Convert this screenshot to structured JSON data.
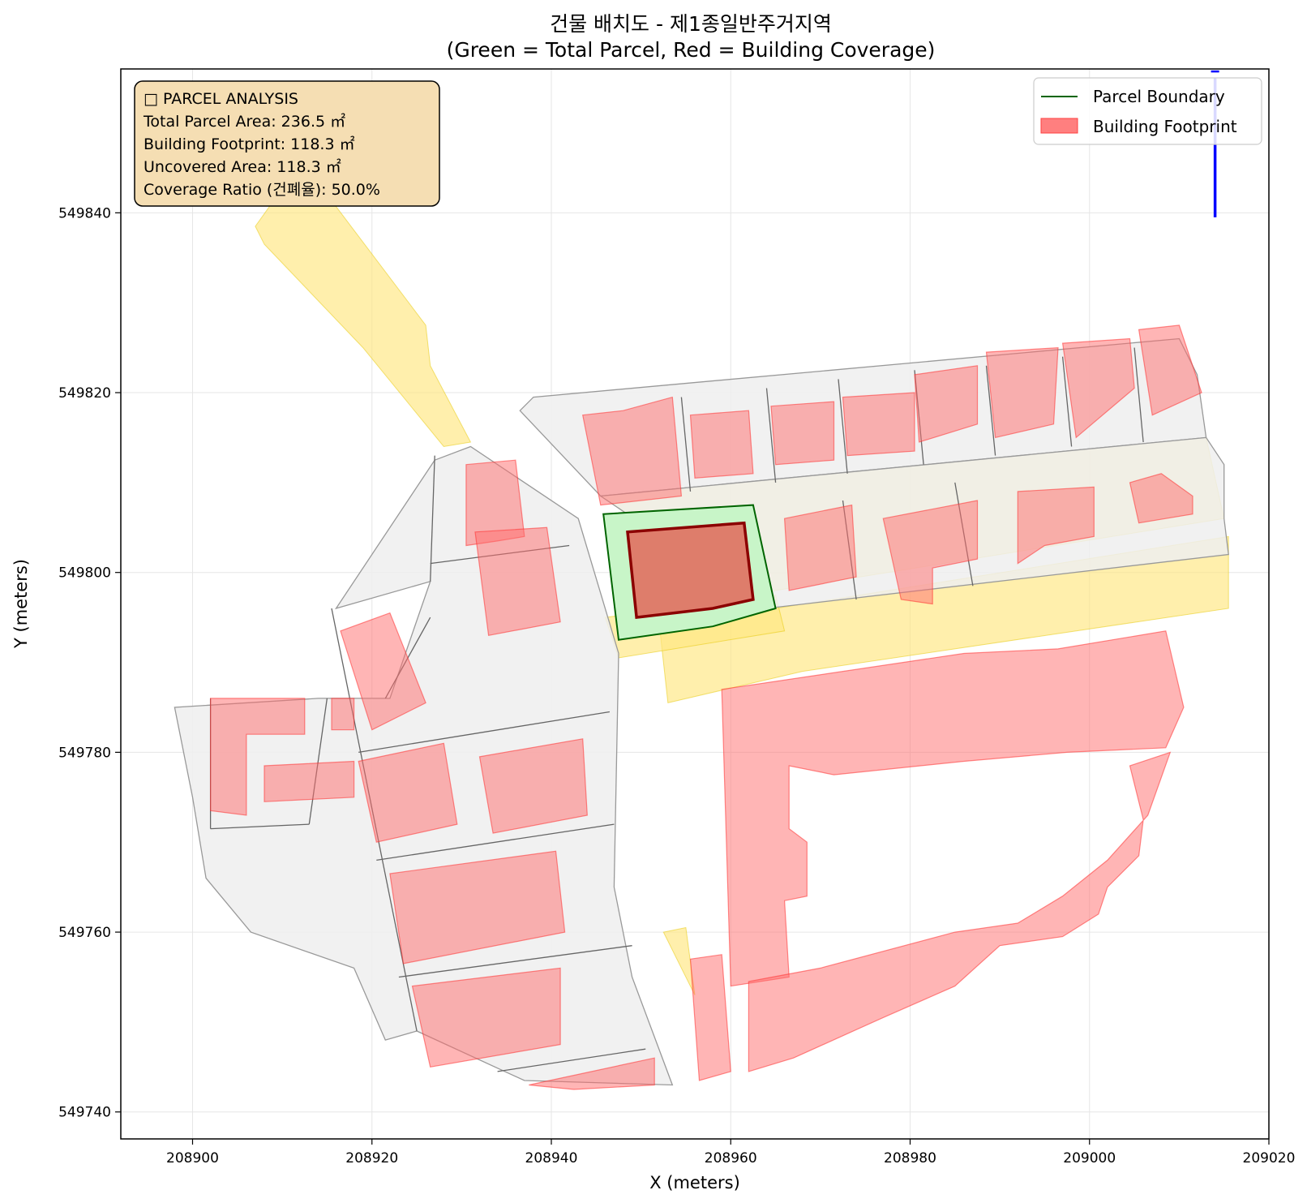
{
  "title": {
    "line1": "건물 배치도 - 제1종일반주거지역",
    "line2": "(Green = Total Parcel, Red = Building Coverage)"
  },
  "axes": {
    "xlabel": "X (meters)",
    "ylabel": "Y (meters)",
    "xlim": [
      208892,
      209020
    ],
    "ylim": [
      549737,
      549856
    ],
    "xticks": [
      208900,
      208920,
      208940,
      208960,
      208980,
      209000,
      209020
    ],
    "yticks": [
      549740,
      549760,
      549780,
      549800,
      549820,
      549840
    ],
    "grid": true
  },
  "legend": {
    "placement": "top-right",
    "items": [
      {
        "label": "Parcel Boundary",
        "kind": "line",
        "color": "#006400"
      },
      {
        "label": "Building Footprint",
        "kind": "patch",
        "color": "#ff7f7f"
      }
    ]
  },
  "info_box": {
    "placement": "top-left",
    "lines": [
      "□ PARCEL ANALYSIS",
      "Total Parcel Area: 236.5 ㎡",
      "Building Footprint: 118.3 ㎡",
      "Uncovered Area: 118.3 ㎡",
      "Coverage Ratio (건폐율): 50.0%"
    ]
  },
  "north_arrow": {
    "x": 209014,
    "y_start": 549839.5,
    "y_end": 549855,
    "color": "#0000ff"
  },
  "colors": {
    "parcel_fill": "#c8f5c8",
    "parcel_edge": "#006400",
    "target_building_fill": "#e07060",
    "target_building_edge": "#8b0000",
    "building_fill": "#ff6b6b",
    "road_fill": "#ffe680",
    "context_fill": "#eeeeee",
    "context_edge": "#666666",
    "info_box_bg": "#f5deb3"
  },
  "map_data": {
    "crs_units": "meters",
    "target_parcel": [
      [
        208945.8,
        549806.5
      ],
      [
        208962.5,
        549807.5
      ],
      [
        208965.0,
        549796.0
      ],
      [
        208958.0,
        549794.0
      ],
      [
        208947.5,
        549792.5
      ]
    ],
    "target_building": [
      [
        208948.5,
        549804.5
      ],
      [
        208961.5,
        549805.5
      ],
      [
        208962.5,
        549797.0
      ],
      [
        208958.0,
        549796.0
      ],
      [
        208949.5,
        549795.0
      ]
    ],
    "context_parcels": [
      [
        [
          208936.5,
          549818.0
        ],
        [
          208938.0,
          549819.5
        ],
        [
          209010.0,
          549826.0
        ],
        [
          209012.0,
          549822.0
        ],
        [
          209013.0,
          549815.0
        ],
        [
          208945.5,
          549808.5
        ]
      ],
      [
        [
          208945.5,
          549808.5
        ],
        [
          209013.0,
          549815.0
        ],
        [
          209015.0,
          549812.0
        ],
        [
          209015.0,
          549806.0
        ],
        [
          209015.5,
          549802.0
        ],
        [
          208964.0,
          549796.0
        ]
      ],
      [
        [
          208927.0,
          549812.5
        ],
        [
          208931.0,
          549814.0
        ],
        [
          208943.0,
          549806.0
        ],
        [
          208947.5,
          549791.0
        ],
        [
          208947.0,
          549765.0
        ],
        [
          208949.0,
          549755.0
        ],
        [
          208953.5,
          549743.0
        ],
        [
          208937.0,
          549743.5
        ],
        [
          208925.0,
          549749.0
        ],
        [
          208921.5,
          549748.0
        ],
        [
          208918.0,
          549756.0
        ],
        [
          208906.5,
          549760.0
        ],
        [
          208901.5,
          549766.0
        ],
        [
          208900.0,
          549775.0
        ],
        [
          208898.0,
          549785.0
        ],
        [
          208914.0,
          549786.0
        ],
        [
          208922.0,
          549786.0
        ],
        [
          208926.5,
          549799.0
        ],
        [
          208916.0,
          549796.0
        ]
      ]
    ],
    "context_lines": [
      [
        [
          208954.5,
          549819.5
        ],
        [
          208955.5,
          549809.0
        ]
      ],
      [
        [
          208964.0,
          549820.5
        ],
        [
          208965.0,
          549810.0
        ]
      ],
      [
        [
          208972.0,
          549821.5
        ],
        [
          208973.0,
          549811.0
        ]
      ],
      [
        [
          208980.5,
          549822.5
        ],
        [
          208981.5,
          549812.0
        ]
      ],
      [
        [
          208988.5,
          549823.0
        ],
        [
          208989.5,
          549813.0
        ]
      ],
      [
        [
          208997.0,
          549824.0
        ],
        [
          208998.0,
          549814.0
        ]
      ],
      [
        [
          209005.0,
          549825.0
        ],
        [
          209006.0,
          549814.5
        ]
      ],
      [
        [
          208972.5,
          549808.0
        ],
        [
          208974.0,
          549797.0
        ]
      ],
      [
        [
          208985.0,
          549810.0
        ],
        [
          208987.0,
          549798.5
        ]
      ],
      [
        [
          208927.0,
          549813.0
        ],
        [
          208926.5,
          549799.0
        ]
      ],
      [
        [
          208926.5,
          549801.0
        ],
        [
          208942.0,
          549803.0
        ]
      ],
      [
        [
          208918.5,
          549780.0
        ],
        [
          208946.5,
          549784.5
        ]
      ],
      [
        [
          208920.5,
          549768.0
        ],
        [
          208947.0,
          549772.0
        ]
      ],
      [
        [
          208923.0,
          549755.0
        ],
        [
          208949.0,
          549758.5
        ]
      ],
      [
        [
          208934.0,
          549744.5
        ],
        [
          208950.5,
          549747.0
        ]
      ],
      [
        [
          208902.0,
          549786.0
        ],
        [
          208902.0,
          549771.5
        ]
      ],
      [
        [
          208902.0,
          549771.5
        ],
        [
          208913.0,
          549772.0
        ]
      ],
      [
        [
          208913.0,
          549772.0
        ],
        [
          208915.0,
          549786.0
        ]
      ],
      [
        [
          208921.5,
          549786.0
        ],
        [
          208926.5,
          549795.0
        ]
      ],
      [
        [
          208915.5,
          549796.0
        ],
        [
          208925.0,
          549749.0
        ]
      ]
    ],
    "roads": [
      [
        [
          208907.0,
          549838.5
        ],
        [
          208912.0,
          549845.5
        ],
        [
          208913.5,
          549844.0
        ],
        [
          208926.0,
          549827.5
        ],
        [
          208926.5,
          549823.0
        ],
        [
          208931.0,
          549814.5
        ],
        [
          208928.0,
          549814.0
        ],
        [
          208919.0,
          549825.0
        ],
        [
          208908.0,
          549836.5
        ]
      ],
      [
        [
          208945.5,
          549808.5
        ],
        [
          209013.0,
          549815.0
        ],
        [
          209015.0,
          549806.0
        ],
        [
          208965.0,
          549798.0
        ],
        [
          208962.5,
          549797.0
        ]
      ],
      [
        [
          208952.0,
          549794.5
        ],
        [
          208965.0,
          549796.0
        ],
        [
          209015.5,
          549804.0
        ],
        [
          209015.5,
          549796.0
        ],
        [
          208968.0,
          549789.0
        ],
        [
          208953.0,
          549785.5
        ]
      ],
      [
        [
          208946.0,
          549795.0
        ],
        [
          208965.0,
          549797.5
        ],
        [
          208966.0,
          549793.5
        ],
        [
          208947.5,
          549790.5
        ]
      ],
      [
        [
          208952.5,
          549760.0
        ],
        [
          208955.0,
          549760.5
        ],
        [
          208956.0,
          549753.0
        ]
      ]
    ],
    "buildings": [
      [
        [
          208943.5,
          549817.5
        ],
        [
          208948.0,
          549818.0
        ],
        [
          208953.5,
          549819.5
        ],
        [
          208954.5,
          549808.5
        ],
        [
          208945.5,
          549807.5
        ]
      ],
      [
        [
          208955.5,
          549817.5
        ],
        [
          208962.0,
          549818.0
        ],
        [
          208962.5,
          549811.0
        ],
        [
          208956.0,
          549810.5
        ]
      ],
      [
        [
          208964.5,
          549818.5
        ],
        [
          208971.5,
          549819.0
        ],
        [
          208971.5,
          549812.5
        ],
        [
          208965.0,
          549812.0
        ]
      ],
      [
        [
          208972.5,
          549819.5
        ],
        [
          208980.5,
          549820.0
        ],
        [
          208980.5,
          549813.5
        ],
        [
          208973.0,
          549813.0
        ]
      ],
      [
        [
          208980.5,
          549822.0
        ],
        [
          208987.5,
          549823.0
        ],
        [
          208987.5,
          549816.5
        ],
        [
          208981.0,
          549814.5
        ]
      ],
      [
        [
          208988.5,
          549824.5
        ],
        [
          208996.5,
          549825.0
        ],
        [
          208996.0,
          549816.5
        ],
        [
          208989.5,
          549815.0
        ]
      ],
      [
        [
          208997.0,
          549825.5
        ],
        [
          209004.5,
          549826.0
        ],
        [
          209005.0,
          549820.5
        ],
        [
          208998.5,
          549815.0
        ]
      ],
      [
        [
          209005.5,
          549827.0
        ],
        [
          209010.0,
          549827.5
        ],
        [
          209012.5,
          549820.0
        ],
        [
          209007.0,
          549817.5
        ]
      ],
      [
        [
          208966.0,
          549806.0
        ],
        [
          208973.5,
          549807.5
        ],
        [
          208974.0,
          549799.5
        ],
        [
          208966.5,
          549798.0
        ]
      ],
      [
        [
          208977.0,
          549806.0
        ],
        [
          208987.5,
          549808.0
        ],
        [
          208987.5,
          549801.5
        ],
        [
          208982.5,
          549800.5
        ],
        [
          208982.5,
          549796.5
        ],
        [
          208979.0,
          549797.0
        ]
      ],
      [
        [
          208992.0,
          549809.0
        ],
        [
          209000.5,
          549809.5
        ],
        [
          209000.5,
          549804.0
        ],
        [
          208995.0,
          549803.0
        ],
        [
          208992.0,
          549801.0
        ]
      ],
      [
        [
          209004.5,
          549810.0
        ],
        [
          209008.0,
          549811.0
        ],
        [
          209011.5,
          549808.5
        ],
        [
          209011.5,
          549806.5
        ],
        [
          209005.5,
          549805.5
        ]
      ],
      [
        [
          208930.5,
          549812.0
        ],
        [
          208936.0,
          549812.5
        ],
        [
          208937.0,
          549804.0
        ],
        [
          208934.0,
          549803.5
        ],
        [
          208930.5,
          549803.0
        ]
      ],
      [
        [
          208931.5,
          549804.5
        ],
        [
          208939.5,
          549805.0
        ],
        [
          208941.0,
          549794.5
        ],
        [
          208933.0,
          549793.0
        ]
      ],
      [
        [
          208916.5,
          549793.5
        ],
        [
          208922.0,
          549795.5
        ],
        [
          208926.0,
          549785.5
        ],
        [
          208920.0,
          549782.5
        ]
      ],
      [
        [
          208918.5,
          549779.0
        ],
        [
          208928.0,
          549781.0
        ],
        [
          208929.5,
          549772.0
        ],
        [
          208920.5,
          549770.0
        ]
      ],
      [
        [
          208932.0,
          549779.5
        ],
        [
          208943.5,
          549781.5
        ],
        [
          208944.0,
          549773.0
        ],
        [
          208933.5,
          549771.0
        ]
      ],
      [
        [
          208922.0,
          549766.5
        ],
        [
          208940.5,
          549769.0
        ],
        [
          208941.5,
          549760.0
        ],
        [
          208923.5,
          549756.5
        ]
      ],
      [
        [
          208924.5,
          549754.0
        ],
        [
          208941.0,
          549756.0
        ],
        [
          208941.0,
          549747.5
        ],
        [
          208926.5,
          549745.0
        ]
      ],
      [
        [
          208937.5,
          549743.0
        ],
        [
          208951.5,
          549746.0
        ],
        [
          208951.5,
          549743.0
        ],
        [
          208942.5,
          549742.5
        ]
      ],
      [
        [
          208902.0,
          549786.0
        ],
        [
          208912.5,
          549786.0
        ],
        [
          208912.5,
          549782.0
        ],
        [
          208906.0,
          549782.0
        ],
        [
          208906.0,
          549773.0
        ],
        [
          208902.0,
          549773.5
        ]
      ],
      [
        [
          208908.0,
          549778.5
        ],
        [
          208918.0,
          549779.0
        ],
        [
          208918.0,
          549775.0
        ],
        [
          208908.0,
          549774.5
        ]
      ],
      [
        [
          208915.5,
          549786.0
        ],
        [
          208918.0,
          549786.0
        ],
        [
          208918.0,
          549782.5
        ],
        [
          208915.5,
          549782.5
        ]
      ],
      [
        [
          208959.0,
          549787.0
        ],
        [
          208986.0,
          549791.0
        ],
        [
          208996.5,
          549791.5
        ],
        [
          209008.5,
          549793.5
        ],
        [
          209010.5,
          549785.0
        ],
        [
          209008.5,
          549780.5
        ],
        [
          208997.5,
          549780.0
        ],
        [
          208986.0,
          549779.0
        ],
        [
          208971.5,
          549777.5
        ],
        [
          208966.5,
          549778.5
        ],
        [
          208966.5,
          549771.5
        ],
        [
          208968.5,
          549770.0
        ],
        [
          208968.5,
          549764.0
        ],
        [
          208966.0,
          549763.5
        ],
        [
          208966.5,
          549755.0
        ],
        [
          208960.0,
          549754.0
        ]
      ],
      [
        [
          208962.0,
          549754.5
        ],
        [
          208970.0,
          549756.0
        ],
        [
          208985.0,
          549760.0
        ],
        [
          208992.0,
          549761.0
        ],
        [
          208997.0,
          549764.0
        ],
        [
          209002.0,
          549768.0
        ],
        [
          209006.5,
          549773.0
        ],
        [
          209009.0,
          549780.0
        ],
        [
          209004.5,
          549778.5
        ],
        [
          209006.0,
          549772.5
        ],
        [
          209005.5,
          549768.5
        ],
        [
          209002.0,
          549765.0
        ],
        [
          209001.0,
          549762.0
        ],
        [
          208997.0,
          549759.5
        ],
        [
          208990.0,
          549758.5
        ],
        [
          208985.0,
          549754.0
        ],
        [
          208977.0,
          549750.5
        ],
        [
          208967.0,
          549746.0
        ],
        [
          208962.0,
          549744.5
        ]
      ],
      [
        [
          208955.5,
          549757.0
        ],
        [
          208959.0,
          549757.5
        ],
        [
          208960.0,
          549744.5
        ],
        [
          208956.5,
          549743.5
        ]
      ]
    ]
  }
}
